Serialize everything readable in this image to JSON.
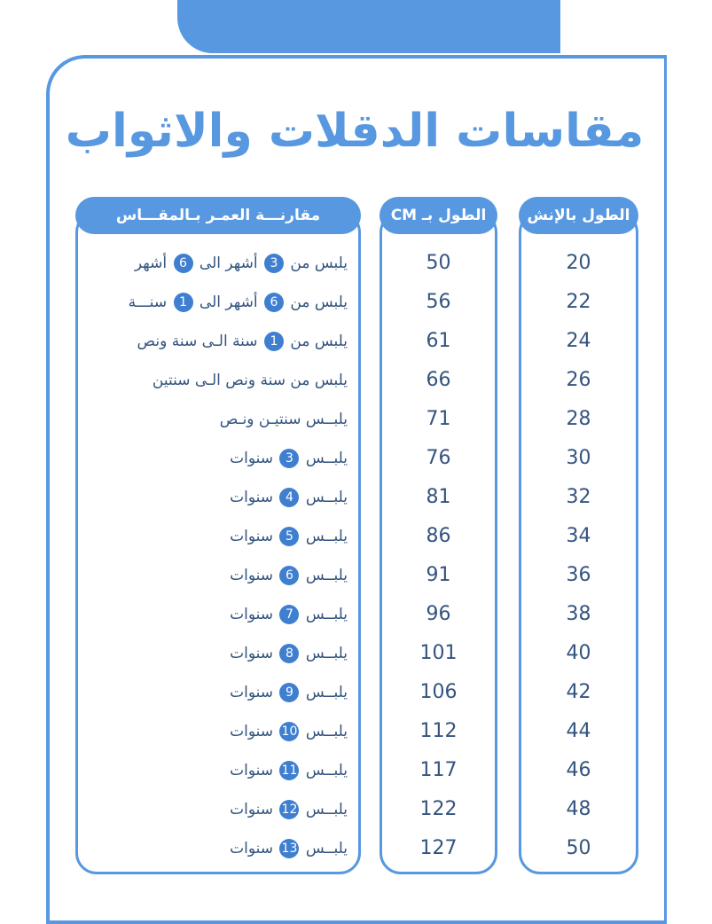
{
  "title": "مقاسات الدقلات والاثواب",
  "table": {
    "headers": [
      "الطول بالإنش",
      "الطول بـ CM",
      "مقارنـــة العمـر بـالمقـــاس"
    ],
    "rows": [
      [
        20,
        50,
        "يلبس من 3 أشهر الى 6 أشهر"
      ],
      [
        22,
        56,
        "يلبس من 6 أشهر الى 1 سنـــة"
      ],
      [
        24,
        61,
        "يلبس من 1 سنة الـى سنة ونص"
      ],
      [
        26,
        66,
        "يلبس من سنة ونص الـى سنتين"
      ],
      [
        28,
        71,
        "يلبــس سنتيـن ونـص"
      ],
      [
        30,
        76,
        "يلبــس 3 سنوات"
      ],
      [
        32,
        81,
        "يلبــس 4 سنوات"
      ],
      [
        34,
        86,
        "يلبــس 5 سنوات"
      ],
      [
        36,
        91,
        "يلبــس 6 سنوات"
      ],
      [
        38,
        96,
        "يلبــس 7 سنوات"
      ],
      [
        40,
        101,
        "يلبــس 8 سنوات"
      ],
      [
        42,
        106,
        "يلبــس 9 سنوات"
      ],
      [
        44,
        112,
        "يلبــس 10 سنوات"
      ],
      [
        46,
        117,
        "يلبــس 11 سنوات"
      ],
      [
        48,
        122,
        "يلبــس 12 سنوات"
      ],
      [
        50,
        127,
        "يلبــس 13 سنوات"
      ]
    ]
  }
}
